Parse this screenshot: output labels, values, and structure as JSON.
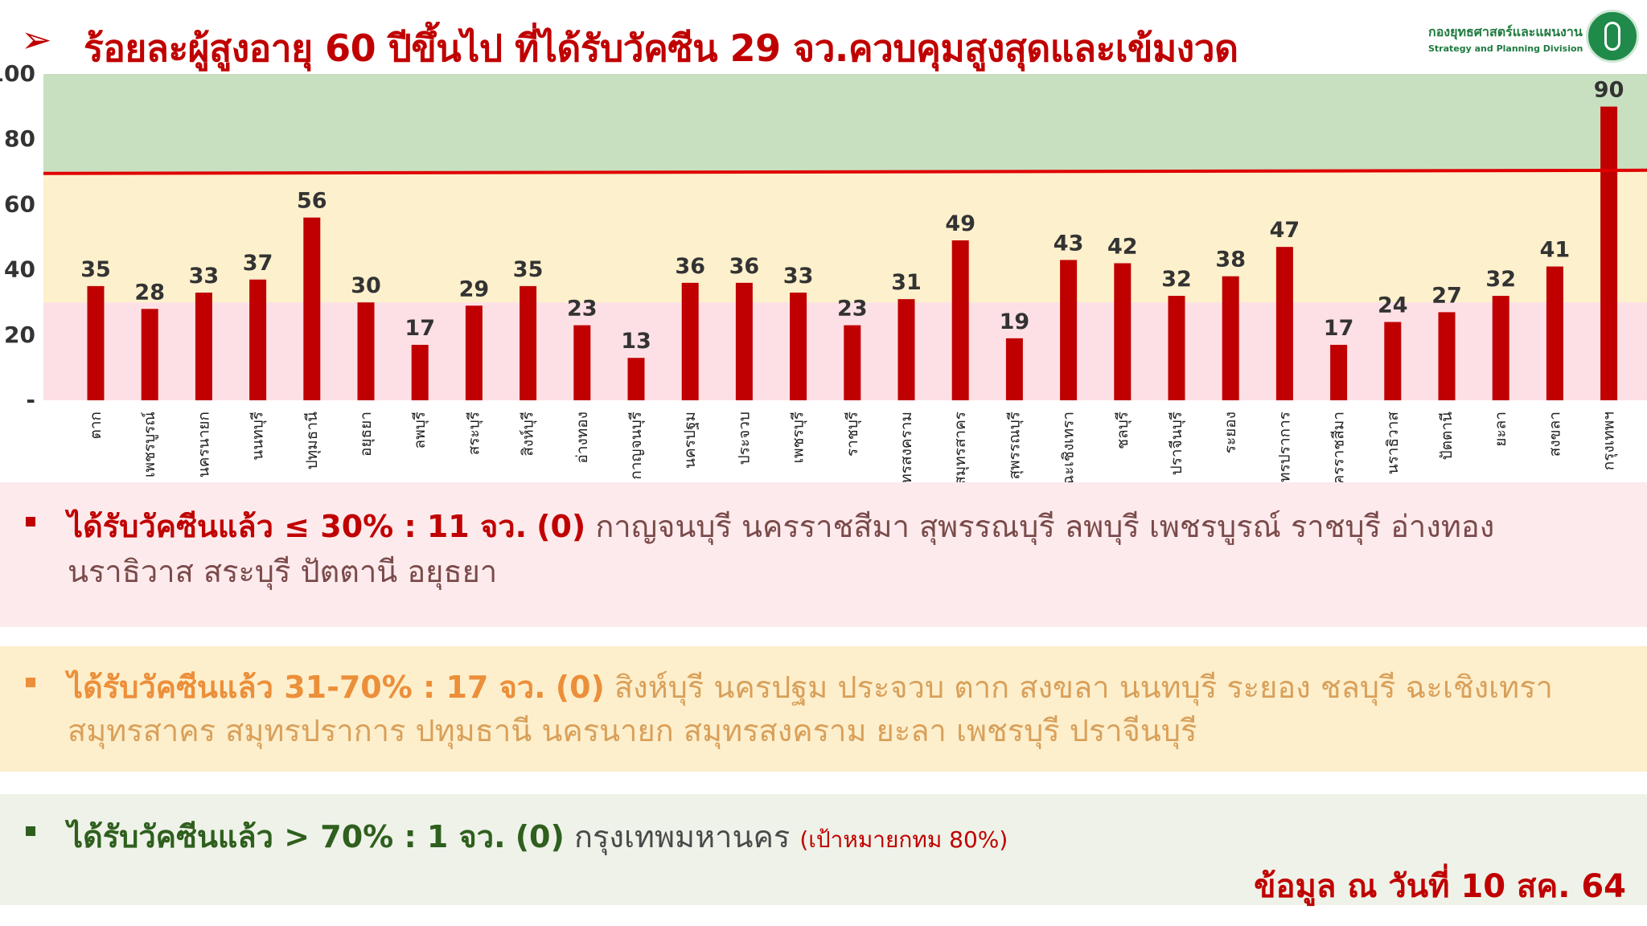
{
  "header": {
    "title": "ร้อยละผู้สูงอายุ 60 ปีขึ้นไป ที่ได้รับวัคซีน 29 จว.ควบคุมสูงสุดและเข้มงวด",
    "logo_th": "กองยุทธศาสตร์และแผนงาน",
    "logo_en": "Strategy and Planning Division",
    "accent_color": "#c00000"
  },
  "chart_data": {
    "type": "bar",
    "title": "",
    "xlabel": "",
    "ylabel": "",
    "ylim": [
      0,
      100
    ],
    "yticks": [
      "-",
      "20",
      "40",
      "60",
      "80",
      "100"
    ],
    "reference_line": 70,
    "bands": [
      {
        "from": 0,
        "to": 30,
        "color": "#fde0e5"
      },
      {
        "from": 30,
        "to": 70,
        "color": "#fdf0cc"
      },
      {
        "from": 70,
        "to": 100,
        "color": "#c8e0c0"
      }
    ],
    "bar_color": "#c00000",
    "categories": [
      "ตาก",
      "เพชรบูรณ์",
      "นครนายก",
      "นนทบุรี",
      "ปทุมธานี",
      "อยุธยา",
      "ลพบุรี",
      "สระบุรี",
      "สิงห์บุรี",
      "อ่างทอง",
      "กาญจนบุรี",
      "นครปฐม",
      "ประจวบ",
      "เพชรบุรี",
      "ราชบุรี",
      "สมุทรสงคราม",
      "สมุทรสาคร",
      "สุพรรณบุรี",
      "ฉะเชิงเทรา",
      "ชลบุรี",
      "ปราจีนบุรี",
      "ระยอง",
      "สมุทรปราการ",
      "นครราชสีมา",
      "นราธิวาส",
      "ปัตตานี",
      "ยะลา",
      "สงขลา",
      "กรุงเทพฯ"
    ],
    "values": [
      35,
      28,
      33,
      37,
      56,
      30,
      17,
      29,
      35,
      23,
      13,
      36,
      36,
      33,
      23,
      31,
      49,
      19,
      43,
      42,
      32,
      38,
      47,
      17,
      24,
      27,
      32,
      41,
      90
    ]
  },
  "groups": [
    {
      "label": "ได้รับวัคซีนแล้ว ≤ 30% : 11 จว.",
      "count": "(0)",
      "line1": "กาญจนบุรี  นครราชสีมา  สุพรรณบุรี  ลพบุรี  เพชรบูรณ์  ราชบุรี  อ่างทอง",
      "line2": "นราธิวาส  สระบุรี  ปัตตานี  อยุธยา",
      "color": "#c00000"
    },
    {
      "label": "ได้รับวัคซีนแล้ว 31-70% : 17 จว.",
      "count": "(0)",
      "line1": "สิงห์บุรี  นครปฐม ประจวบ  ตาก  สงขลา  นนทบุรี  ระยอง  ชลบุรี  ฉะเชิงเทรา",
      "line2": "สมุทรสาคร  สมุทรปราการ   ปทุมธานี นครนายก สมุทรสงคราม ยะลา เพชรบุรี ปราจีนบุรี",
      "color": "#ec8f3a"
    },
    {
      "label": "ได้รับวัคซีนแล้ว > 70% : 1 จว.",
      "count": "(0)",
      "line1": "กรุงเทพมหานคร",
      "note": "(เป้าหมายกทม 80%)",
      "color": "#2f5f1e"
    }
  ],
  "footer": "ข้อมูล ณ วันที่ 10 สค. 64"
}
